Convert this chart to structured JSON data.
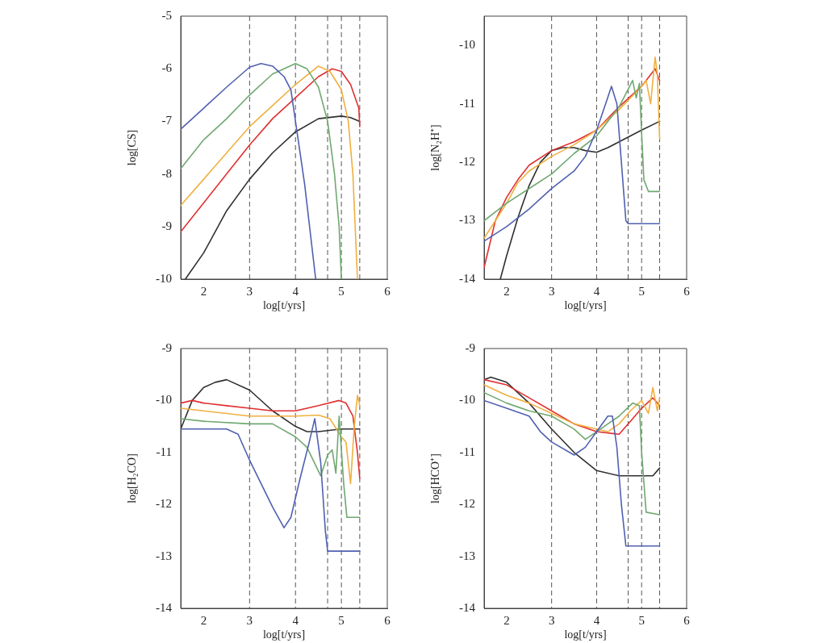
{
  "chart_data": [
    {
      "type": "line",
      "xlabel": "log[t/yrs]",
      "ylabel": "log[CS]",
      "xlim": [
        1.5,
        6
      ],
      "xticks": [
        2,
        3,
        4,
        5,
        6
      ],
      "ylim": [
        -10,
        -5
      ],
      "yticks": [
        -10,
        -9,
        -8,
        -7,
        -6,
        -5
      ],
      "grid": false,
      "legend": false,
      "ref_lines": [
        {
          "axis": "x",
          "value": 3,
          "color": "#555555",
          "line_style": "dashed"
        },
        {
          "axis": "x",
          "value": 4,
          "color": "#555555",
          "line_style": "dashed"
        },
        {
          "axis": "x",
          "value": 4.7,
          "color": "#555555",
          "line_style": "dashed"
        },
        {
          "axis": "x",
          "value": 5,
          "color": "#555555",
          "line_style": "dashed"
        },
        {
          "axis": "x",
          "value": 5.4,
          "color": "#555555",
          "line_style": "dashed"
        }
      ],
      "series": [
        {
          "color": "#5060b0",
          "x": [
            1.5,
            2,
            2.5,
            3,
            3.25,
            3.5,
            3.75,
            3.9,
            4,
            4.2,
            4.44
          ],
          "values": [
            -7.15,
            -6.75,
            -6.35,
            -5.97,
            -5.9,
            -5.95,
            -6.15,
            -6.4,
            -7.0,
            -8.2,
            -10
          ]
        },
        {
          "color": "#70a870",
          "x": [
            1.5,
            2,
            2.5,
            3,
            3.5,
            4,
            4.25,
            4.5,
            4.7,
            4.85,
            4.95,
            5.0
          ],
          "values": [
            -7.9,
            -7.35,
            -6.95,
            -6.5,
            -6.1,
            -5.9,
            -6.0,
            -6.35,
            -7.0,
            -8.0,
            -9.0,
            -10
          ]
        },
        {
          "color": "#f0b040",
          "x": [
            1.5,
            2,
            2.5,
            3,
            3.5,
            4,
            4.5,
            4.75,
            5.0,
            5.15,
            5.25,
            5.3,
            5.35
          ],
          "values": [
            -8.6,
            -8.1,
            -7.6,
            -7.1,
            -6.7,
            -6.3,
            -5.95,
            -6.05,
            -6.4,
            -7.0,
            -8.0,
            -9.0,
            -10
          ]
        },
        {
          "color": "#e03030",
          "x": [
            1.5,
            2,
            2.5,
            3,
            3.5,
            4,
            4.5,
            4.8,
            5.0,
            5.2,
            5.38,
            5.4
          ],
          "values": [
            -9.1,
            -8.55,
            -8.0,
            -7.45,
            -6.95,
            -6.55,
            -6.15,
            -6.0,
            -6.05,
            -6.3,
            -6.75,
            -7.1
          ]
        },
        {
          "color": "#303030",
          "x": [
            1.6,
            2,
            2.5,
            3,
            3.5,
            4,
            4.5,
            5,
            5.2,
            5.4
          ],
          "values": [
            -10,
            -9.5,
            -8.7,
            -8.1,
            -7.6,
            -7.2,
            -6.95,
            -6.9,
            -6.93,
            -7.0
          ]
        }
      ]
    },
    {
      "type": "line",
      "xlabel": "log[t/yrs]",
      "ylabel": "log[N₂H⁺]",
      "xlim": [
        1.5,
        6
      ],
      "xticks": [
        2,
        3,
        4,
        5,
        6
      ],
      "ylim": [
        -14,
        -9.5
      ],
      "yticks": [
        -14,
        -13,
        -12,
        -11,
        -10
      ],
      "grid": false,
      "legend": false,
      "ref_lines": [
        {
          "axis": "x",
          "value": 3,
          "color": "#555555",
          "line_style": "dashed"
        },
        {
          "axis": "x",
          "value": 4,
          "color": "#555555",
          "line_style": "dashed"
        },
        {
          "axis": "x",
          "value": 4.7,
          "color": "#555555",
          "line_style": "dashed"
        },
        {
          "axis": "x",
          "value": 5,
          "color": "#555555",
          "line_style": "dashed"
        },
        {
          "axis": "x",
          "value": 5.4,
          "color": "#555555",
          "line_style": "dashed"
        }
      ],
      "series": [
        {
          "color": "#5060b0",
          "x": [
            1.5,
            2,
            2.5,
            3,
            3.5,
            3.75,
            4,
            4.2,
            4.33,
            4.45,
            4.55,
            4.65,
            4.7,
            5.4
          ],
          "values": [
            -13.35,
            -13.1,
            -12.8,
            -12.45,
            -12.15,
            -11.9,
            -11.45,
            -11.0,
            -10.7,
            -11.0,
            -12.0,
            -13.0,
            -13.05,
            -13.05
          ]
        },
        {
          "color": "#70a870",
          "x": [
            1.5,
            2,
            2.5,
            3,
            3.5,
            4,
            4.5,
            4.7,
            4.8,
            4.88,
            4.95,
            5.0,
            5.05,
            5.15,
            5.4
          ],
          "values": [
            -13.0,
            -12.7,
            -12.45,
            -12.2,
            -11.85,
            -11.55,
            -11.05,
            -10.75,
            -10.6,
            -10.9,
            -10.65,
            -11.5,
            -12.3,
            -12.5,
            -12.5
          ]
        },
        {
          "color": "#f0b040",
          "x": [
            1.5,
            2,
            2.25,
            2.5,
            3,
            3.5,
            4,
            4.5,
            5,
            5.1,
            5.2,
            5.3,
            5.35,
            5.4
          ],
          "values": [
            -13.3,
            -12.7,
            -12.35,
            -12.15,
            -11.9,
            -11.7,
            -11.45,
            -11.1,
            -10.7,
            -10.6,
            -11.0,
            -10.2,
            -10.5,
            -11.6
          ]
        },
        {
          "color": "#e03030",
          "x": [
            1.5,
            1.75,
            2,
            2.25,
            2.5,
            3,
            3.5,
            4,
            4.5,
            5,
            5.3,
            5.4
          ],
          "values": [
            -13.8,
            -13.0,
            -12.6,
            -12.3,
            -12.05,
            -11.8,
            -11.65,
            -11.45,
            -11.05,
            -10.7,
            -10.4,
            -10.6
          ]
        },
        {
          "color": "#303030",
          "x": [
            1.86,
            2,
            2.25,
            2.5,
            2.75,
            3,
            3.25,
            3.5,
            3.75,
            4,
            4.25,
            4.5,
            5,
            5.4
          ],
          "values": [
            -14,
            -13.6,
            -12.95,
            -12.4,
            -12.0,
            -11.8,
            -11.75,
            -11.75,
            -11.8,
            -11.83,
            -11.75,
            -11.65,
            -11.45,
            -11.3
          ]
        }
      ]
    },
    {
      "type": "line",
      "xlabel": "log[t/yrs]",
      "ylabel": "log[H₂CO]",
      "xlim": [
        1.5,
        6
      ],
      "xticks": [
        2,
        3,
        4,
        5,
        6
      ],
      "ylim": [
        -14,
        -9
      ],
      "yticks": [
        -14,
        -13,
        -12,
        -11,
        -10,
        -9
      ],
      "grid": false,
      "legend": false,
      "ref_lines": [
        {
          "axis": "x",
          "value": 3,
          "color": "#555555",
          "line_style": "dashed"
        },
        {
          "axis": "x",
          "value": 4,
          "color": "#555555",
          "line_style": "dashed"
        },
        {
          "axis": "x",
          "value": 4.7,
          "color": "#555555",
          "line_style": "dashed"
        },
        {
          "axis": "x",
          "value": 5,
          "color": "#555555",
          "line_style": "dashed"
        },
        {
          "axis": "x",
          "value": 5.4,
          "color": "#555555",
          "line_style": "dashed"
        }
      ],
      "series": [
        {
          "color": "#5060b0",
          "x": [
            1.5,
            2,
            2.5,
            2.75,
            3,
            3.25,
            3.5,
            3.75,
            3.9,
            4.1,
            4.3,
            4.42,
            4.55,
            4.65,
            4.7,
            5.4
          ],
          "values": [
            -10.55,
            -10.55,
            -10.55,
            -10.65,
            -11.15,
            -11.6,
            -12.05,
            -12.45,
            -12.25,
            -11.5,
            -10.8,
            -10.35,
            -11.2,
            -12.5,
            -12.9,
            -12.9
          ]
        },
        {
          "color": "#70a870",
          "x": [
            1.5,
            2,
            3,
            3.5,
            4,
            4.25,
            4.55,
            4.7,
            4.8,
            4.88,
            4.95,
            5.05,
            5.12,
            5.4
          ],
          "values": [
            -10.35,
            -10.4,
            -10.45,
            -10.45,
            -10.7,
            -10.9,
            -11.45,
            -11.05,
            -10.95,
            -11.4,
            -10.3,
            -11.6,
            -12.25,
            -12.25
          ]
        },
        {
          "color": "#f0b040",
          "x": [
            1.5,
            2,
            2.5,
            3,
            4,
            4.5,
            4.75,
            5.0,
            5.1,
            5.2,
            5.28,
            5.35,
            5.4
          ],
          "values": [
            -10.15,
            -10.2,
            -10.25,
            -10.3,
            -10.3,
            -10.28,
            -10.35,
            -10.7,
            -10.8,
            -11.6,
            -10.5,
            -9.9,
            -10.1
          ]
        },
        {
          "color": "#e03030",
          "x": [
            1.5,
            1.75,
            2,
            2.5,
            3,
            3.5,
            4,
            4.5,
            4.95,
            5.1,
            5.25,
            5.35,
            5.4
          ],
          "values": [
            -10.05,
            -10.0,
            -10.05,
            -10.1,
            -10.15,
            -10.2,
            -10.2,
            -10.1,
            -10.0,
            -10.05,
            -10.3,
            -11.0,
            -11.5
          ]
        },
        {
          "color": "#303030",
          "x": [
            1.5,
            1.75,
            2,
            2.25,
            2.5,
            3,
            3.5,
            4,
            4.25,
            4.5,
            5,
            5.4
          ],
          "values": [
            -10.55,
            -10.0,
            -9.75,
            -9.65,
            -9.6,
            -9.8,
            -10.2,
            -10.5,
            -10.6,
            -10.6,
            -10.55,
            -10.55
          ]
        }
      ]
    },
    {
      "type": "line",
      "xlabel": "log[t/yrs]",
      "ylabel": "log[HCO⁺]",
      "xlim": [
        1.5,
        6
      ],
      "xticks": [
        2,
        3,
        4,
        5,
        6
      ],
      "ylim": [
        -14,
        -9
      ],
      "yticks": [
        -14,
        -13,
        -12,
        -11,
        -10,
        -9
      ],
      "grid": false,
      "legend": false,
      "ref_lines": [
        {
          "axis": "x",
          "value": 3,
          "color": "#555555",
          "line_style": "dashed"
        },
        {
          "axis": "x",
          "value": 4,
          "color": "#555555",
          "line_style": "dashed"
        },
        {
          "axis": "x",
          "value": 4.7,
          "color": "#555555",
          "line_style": "dashed"
        },
        {
          "axis": "x",
          "value": 5,
          "color": "#555555",
          "line_style": "dashed"
        },
        {
          "axis": "x",
          "value": 5.4,
          "color": "#555555",
          "line_style": "dashed"
        }
      ],
      "series": [
        {
          "color": "#5060b0",
          "x": [
            1.5,
            2,
            2.5,
            2.75,
            3,
            3.5,
            3.75,
            4,
            4.25,
            4.35,
            4.45,
            4.55,
            4.65,
            5.4
          ],
          "values": [
            -10.0,
            -10.15,
            -10.3,
            -10.6,
            -10.8,
            -11.05,
            -10.9,
            -10.6,
            -10.3,
            -10.3,
            -10.9,
            -12.0,
            -12.8,
            -12.8
          ]
        },
        {
          "color": "#70a870",
          "x": [
            1.5,
            2,
            2.5,
            3,
            3.5,
            3.75,
            4,
            4.5,
            4.8,
            4.95,
            5.0,
            5.1,
            5.4
          ],
          "values": [
            -9.85,
            -10.05,
            -10.2,
            -10.3,
            -10.55,
            -10.75,
            -10.6,
            -10.3,
            -10.05,
            -10.1,
            -11.0,
            -12.15,
            -12.2
          ]
        },
        {
          "color": "#f0b040",
          "x": [
            1.5,
            2,
            2.5,
            3,
            3.5,
            4,
            4.25,
            4.5,
            4.75,
            5,
            5.15,
            5.25,
            5.35,
            5.4
          ],
          "values": [
            -9.7,
            -9.9,
            -10.05,
            -10.25,
            -10.45,
            -10.55,
            -10.6,
            -10.45,
            -10.2,
            -10.0,
            -10.25,
            -9.75,
            -10.2,
            -9.95
          ]
        },
        {
          "color": "#e03030",
          "x": [
            1.5,
            2,
            2.5,
            3,
            3.5,
            4,
            4.5,
            4.75,
            5,
            5.25,
            5.4
          ],
          "values": [
            -9.6,
            -9.7,
            -9.95,
            -10.2,
            -10.45,
            -10.6,
            -10.65,
            -10.4,
            -10.15,
            -9.95,
            -10.1
          ]
        },
        {
          "color": "#303030",
          "x": [
            1.5,
            1.65,
            2,
            2.5,
            3,
            3.5,
            4,
            4.5,
            5,
            5.25,
            5.4
          ],
          "values": [
            -9.6,
            -9.55,
            -9.65,
            -10.05,
            -10.55,
            -11.0,
            -11.35,
            -11.45,
            -11.45,
            -11.45,
            -11.3
          ]
        }
      ]
    }
  ]
}
